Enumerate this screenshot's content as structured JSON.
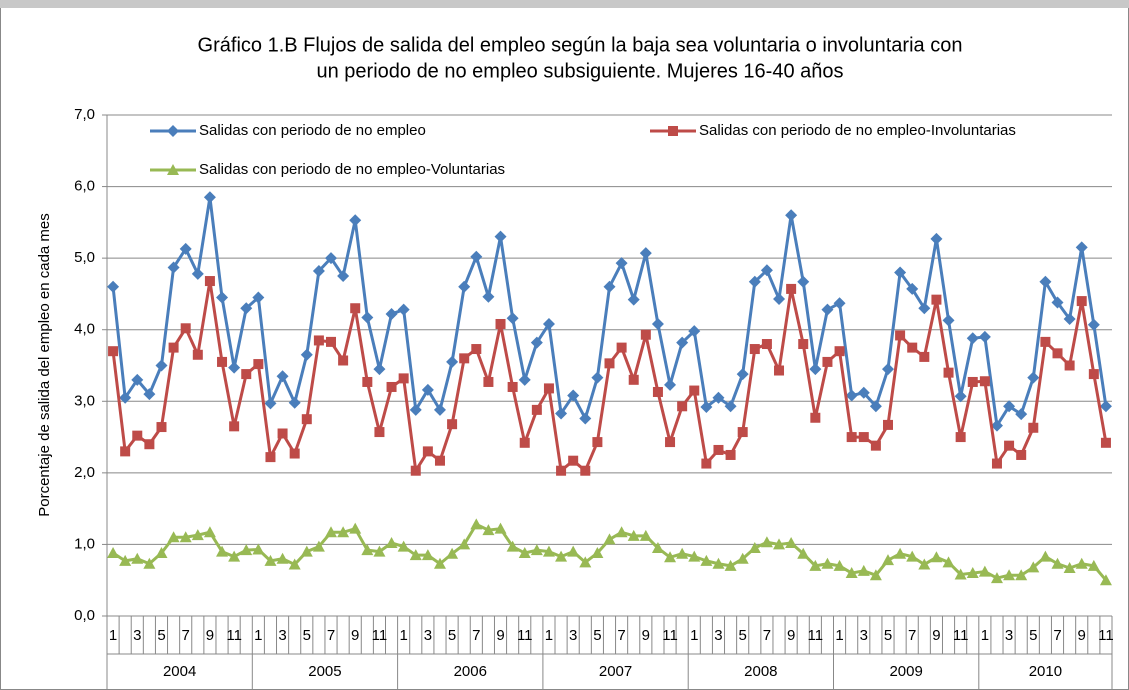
{
  "chart_data": {
    "type": "line",
    "title": [
      "Gráfico 1.B Flujos de salida del empleo según la baja sea voluntaria o involuntaria con",
      "un periodo de no empleo subsiguiente. Mujeres 16-40 años"
    ],
    "y_label": "Porcentaje de salida del empleo en cada mes",
    "categories": [
      "1",
      null,
      "3",
      null,
      "5",
      null,
      "7",
      null,
      "9",
      null,
      "11",
      null,
      "1",
      null,
      "3",
      null,
      "5",
      null,
      "7",
      null,
      "9",
      null,
      "11",
      null,
      "1",
      null,
      "3",
      null,
      "5",
      null,
      "7",
      null,
      "9",
      null,
      "11",
      null,
      "1",
      null,
      "3",
      null,
      "5",
      null,
      "7",
      null,
      "9",
      null,
      "11",
      null,
      "1",
      null,
      "3",
      null,
      "5",
      null,
      "7",
      null,
      "9",
      null,
      "11",
      null,
      "1",
      null,
      "3",
      null,
      "5",
      null,
      "7",
      null,
      "9",
      null,
      "11",
      null,
      "1",
      null,
      "3",
      null,
      "5",
      null,
      "7",
      null,
      "9",
      null,
      "11"
    ],
    "years": [
      "2004",
      "2005",
      "2006",
      "2007",
      "2008",
      "2009",
      "2010"
    ],
    "ylim": [
      0,
      7
    ],
    "yticks": [
      {
        "value": 0,
        "label": "0,0"
      },
      {
        "value": 1,
        "label": "1,0"
      },
      {
        "value": 2,
        "label": "2,0"
      },
      {
        "value": 3,
        "label": "3,0"
      },
      {
        "value": 4,
        "label": "4,0"
      },
      {
        "value": 5,
        "label": "5,0"
      },
      {
        "value": 6,
        "label": "6,0"
      },
      {
        "value": 7,
        "label": "7,0"
      }
    ],
    "grid": true,
    "series": [
      {
        "name": "Salidas con periodo de no empleo",
        "color": "#4a7ebb",
        "marker": "diamond",
        "values": [
          4.6,
          3.05,
          3.3,
          3.1,
          3.5,
          4.87,
          5.13,
          4.78,
          5.85,
          4.45,
          3.47,
          4.3,
          4.45,
          2.97,
          3.35,
          2.98,
          3.65,
          4.82,
          5.0,
          4.75,
          5.53,
          4.17,
          3.45,
          4.22,
          4.28,
          2.88,
          3.16,
          2.88,
          3.55,
          4.6,
          5.02,
          4.46,
          5.3,
          4.16,
          3.3,
          3.82,
          4.08,
          2.83,
          3.08,
          2.76,
          3.33,
          4.6,
          4.93,
          4.42,
          5.07,
          4.08,
          3.23,
          3.82,
          3.98,
          2.92,
          3.05,
          2.93,
          3.38,
          4.67,
          4.83,
          4.43,
          5.6,
          4.67,
          3.45,
          4.28,
          4.37,
          3.08,
          3.12,
          2.93,
          3.45,
          4.8,
          4.57,
          4.3,
          5.27,
          4.13,
          3.07,
          3.88,
          3.9,
          2.66,
          2.93,
          2.82,
          3.33,
          4.67,
          4.38,
          4.15,
          5.15,
          4.07,
          2.93
        ]
      },
      {
        "name": "Salidas con periodo de no empleo-Involuntarias",
        "color": "#be4b48",
        "marker": "square",
        "values": [
          3.7,
          2.3,
          2.52,
          2.4,
          2.64,
          3.75,
          4.02,
          3.65,
          4.68,
          3.55,
          2.65,
          3.38,
          3.52,
          2.22,
          2.55,
          2.27,
          2.75,
          3.85,
          3.83,
          3.57,
          4.3,
          3.27,
          2.57,
          3.2,
          3.32,
          2.03,
          2.3,
          2.17,
          2.68,
          3.6,
          3.73,
          3.27,
          4.08,
          3.2,
          2.42,
          2.88,
          3.18,
          2.03,
          2.17,
          2.03,
          2.43,
          3.53,
          3.75,
          3.3,
          3.93,
          3.13,
          2.43,
          2.93,
          3.15,
          2.13,
          2.32,
          2.25,
          2.57,
          3.73,
          3.8,
          3.43,
          4.57,
          3.8,
          2.77,
          3.55,
          3.7,
          2.5,
          2.5,
          2.38,
          2.67,
          3.92,
          3.75,
          3.62,
          4.42,
          3.4,
          2.5,
          3.27,
          3.28,
          2.13,
          2.38,
          2.25,
          2.63,
          3.83,
          3.67,
          3.5,
          4.4,
          3.38,
          2.42
        ]
      },
      {
        "name": "Salidas con periodo de no empleo-Voluntarias",
        "color": "#98b954",
        "marker": "triangle",
        "values": [
          0.88,
          0.77,
          0.8,
          0.73,
          0.88,
          1.1,
          1.1,
          1.13,
          1.17,
          0.9,
          0.83,
          0.92,
          0.93,
          0.77,
          0.8,
          0.72,
          0.9,
          0.97,
          1.17,
          1.17,
          1.22,
          0.92,
          0.9,
          1.02,
          0.97,
          0.85,
          0.85,
          0.73,
          0.87,
          1.0,
          1.28,
          1.2,
          1.22,
          0.97,
          0.88,
          0.92,
          0.9,
          0.83,
          0.9,
          0.75,
          0.88,
          1.07,
          1.17,
          1.12,
          1.12,
          0.95,
          0.82,
          0.87,
          0.83,
          0.77,
          0.73,
          0.7,
          0.8,
          0.95,
          1.03,
          1.0,
          1.02,
          0.87,
          0.7,
          0.73,
          0.7,
          0.6,
          0.63,
          0.57,
          0.78,
          0.87,
          0.83,
          0.72,
          0.82,
          0.75,
          0.58,
          0.6,
          0.62,
          0.53,
          0.57,
          0.57,
          0.68,
          0.83,
          0.73,
          0.67,
          0.73,
          0.7,
          0.5
        ]
      }
    ]
  }
}
